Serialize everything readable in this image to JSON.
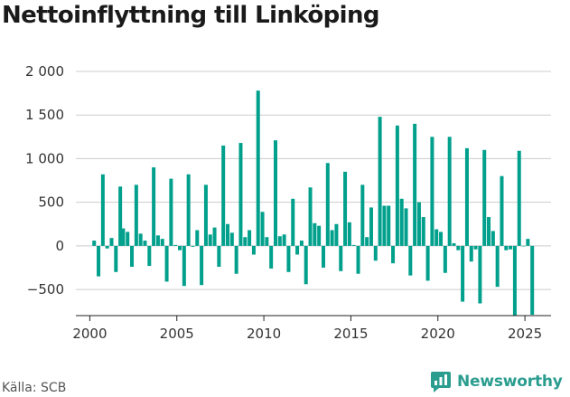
{
  "header": {
    "title": "Nettoinflyttning till Linköping"
  },
  "footer": {
    "source": "Källa: SCB",
    "brand": "Newsworthy"
  },
  "colors": {
    "bar": "#00a08c",
    "brand": "#2a9d8f",
    "grid": "#cccccc",
    "axis": "#222222"
  },
  "icons": {
    "brand_logo": "newsworthy-bubble-icon"
  },
  "chart_data": {
    "type": "bar",
    "title": "Nettoinflyttning till Linköping",
    "xlabel": "",
    "ylabel": "",
    "xlim": [
      1999.2,
      2026.5
    ],
    "ylim": [
      -800,
      2000
    ],
    "y_ticks": [
      -500,
      0,
      500,
      1000,
      1500,
      2000
    ],
    "y_tick_labels": [
      "−500",
      "0",
      "500",
      "1 000",
      "1 500",
      "2 000"
    ],
    "x_ticks": [
      2000,
      2005,
      2010,
      2015,
      2020,
      2025
    ],
    "x_tick_labels": [
      "2000",
      "2005",
      "2010",
      "2015",
      "2020",
      "2025"
    ],
    "grid": "horizontal",
    "values": [
      [
        2000.25,
        60
      ],
      [
        2000.5,
        -350
      ],
      [
        2000.75,
        820
      ],
      [
        2001.0,
        -30
      ],
      [
        2001.25,
        90
      ],
      [
        2001.5,
        -300
      ],
      [
        2001.75,
        680
      ],
      [
        2001.92,
        200
      ],
      [
        2002.17,
        160
      ],
      [
        2002.42,
        -240
      ],
      [
        2002.67,
        700
      ],
      [
        2002.92,
        140
      ],
      [
        2003.17,
        60
      ],
      [
        2003.42,
        -230
      ],
      [
        2003.67,
        900
      ],
      [
        2003.92,
        120
      ],
      [
        2004.17,
        80
      ],
      [
        2004.42,
        -410
      ],
      [
        2004.67,
        770
      ],
      [
        2004.92,
        10
      ],
      [
        2005.17,
        -50
      ],
      [
        2005.42,
        -460
      ],
      [
        2005.67,
        820
      ],
      [
        2005.92,
        -10
      ],
      [
        2006.17,
        180
      ],
      [
        2006.42,
        -450
      ],
      [
        2006.67,
        700
      ],
      [
        2006.92,
        130
      ],
      [
        2007.17,
        210
      ],
      [
        2007.42,
        -240
      ],
      [
        2007.67,
        1150
      ],
      [
        2007.92,
        250
      ],
      [
        2008.17,
        150
      ],
      [
        2008.42,
        -320
      ],
      [
        2008.67,
        1180
      ],
      [
        2008.92,
        100
      ],
      [
        2009.17,
        180
      ],
      [
        2009.42,
        -100
      ],
      [
        2009.67,
        1780
      ],
      [
        2009.92,
        390
      ],
      [
        2010.17,
        100
      ],
      [
        2010.42,
        -260
      ],
      [
        2010.67,
        1210
      ],
      [
        2010.92,
        110
      ],
      [
        2011.17,
        130
      ],
      [
        2011.42,
        -300
      ],
      [
        2011.67,
        540
      ],
      [
        2011.92,
        -100
      ],
      [
        2012.17,
        60
      ],
      [
        2012.42,
        -440
      ],
      [
        2012.67,
        670
      ],
      [
        2012.92,
        260
      ],
      [
        2013.17,
        230
      ],
      [
        2013.42,
        -250
      ],
      [
        2013.67,
        950
      ],
      [
        2013.92,
        180
      ],
      [
        2014.17,
        250
      ],
      [
        2014.42,
        -290
      ],
      [
        2014.67,
        850
      ],
      [
        2014.92,
        270
      ],
      [
        2015.17,
        10
      ],
      [
        2015.42,
        -320
      ],
      [
        2015.67,
        700
      ],
      [
        2015.92,
        100
      ],
      [
        2016.17,
        440
      ],
      [
        2016.42,
        -170
      ],
      [
        2016.67,
        1480
      ],
      [
        2016.92,
        460
      ],
      [
        2017.17,
        460
      ],
      [
        2017.42,
        -200
      ],
      [
        2017.67,
        1380
      ],
      [
        2017.92,
        540
      ],
      [
        2018.17,
        430
      ],
      [
        2018.42,
        -340
      ],
      [
        2018.67,
        1400
      ],
      [
        2018.92,
        500
      ],
      [
        2019.17,
        330
      ],
      [
        2019.42,
        -400
      ],
      [
        2019.67,
        1250
      ],
      [
        2019.92,
        190
      ],
      [
        2020.17,
        160
      ],
      [
        2020.42,
        -310
      ],
      [
        2020.67,
        1250
      ],
      [
        2020.92,
        30
      ],
      [
        2021.17,
        -50
      ],
      [
        2021.42,
        -640
      ],
      [
        2021.67,
        1120
      ],
      [
        2021.92,
        -180
      ],
      [
        2022.17,
        -40
      ],
      [
        2022.42,
        -660
      ],
      [
        2022.67,
        1100
      ],
      [
        2022.92,
        330
      ],
      [
        2023.17,
        170
      ],
      [
        2023.42,
        -470
      ],
      [
        2023.67,
        800
      ],
      [
        2023.92,
        -50
      ],
      [
        2024.17,
        -40
      ],
      [
        2024.42,
        -800
      ],
      [
        2024.67,
        1090
      ],
      [
        2024.92,
        0
      ],
      [
        2025.17,
        80
      ],
      [
        2025.42,
        -790
      ]
    ]
  }
}
